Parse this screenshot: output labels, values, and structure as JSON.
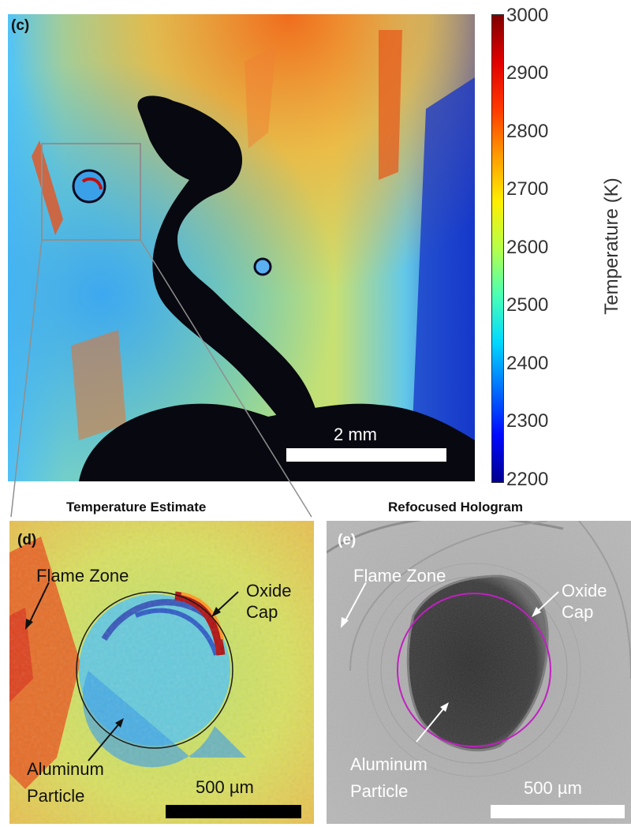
{
  "panel_c": {
    "label": "(c)",
    "scale_bar": "2 mm"
  },
  "colorbar": {
    "label": "Temperature (K)",
    "ticks": [
      "3000",
      "2900",
      "2800",
      "2700",
      "2600",
      "2500",
      "2400",
      "2300",
      "2200"
    ],
    "min": 2200,
    "max": 3000,
    "colormap": "jet"
  },
  "panel_d": {
    "title": "Temperature Estimate",
    "label": "(d)",
    "annotations": {
      "flame_zone": "Flame Zone",
      "oxide_cap_1": "Oxide",
      "oxide_cap_2": "Cap",
      "particle_1": "Aluminum",
      "particle_2": "Particle"
    },
    "scale_bar": "500 µm"
  },
  "panel_e": {
    "title": "Refocused Hologram",
    "label": "(e)",
    "annotations": {
      "flame_zone": "Flame Zone",
      "oxide_cap_1": "Oxide",
      "oxide_cap_2": "Cap",
      "particle_1": "Aluminum",
      "particle_2": "Particle"
    },
    "scale_bar": "500 µm"
  }
}
